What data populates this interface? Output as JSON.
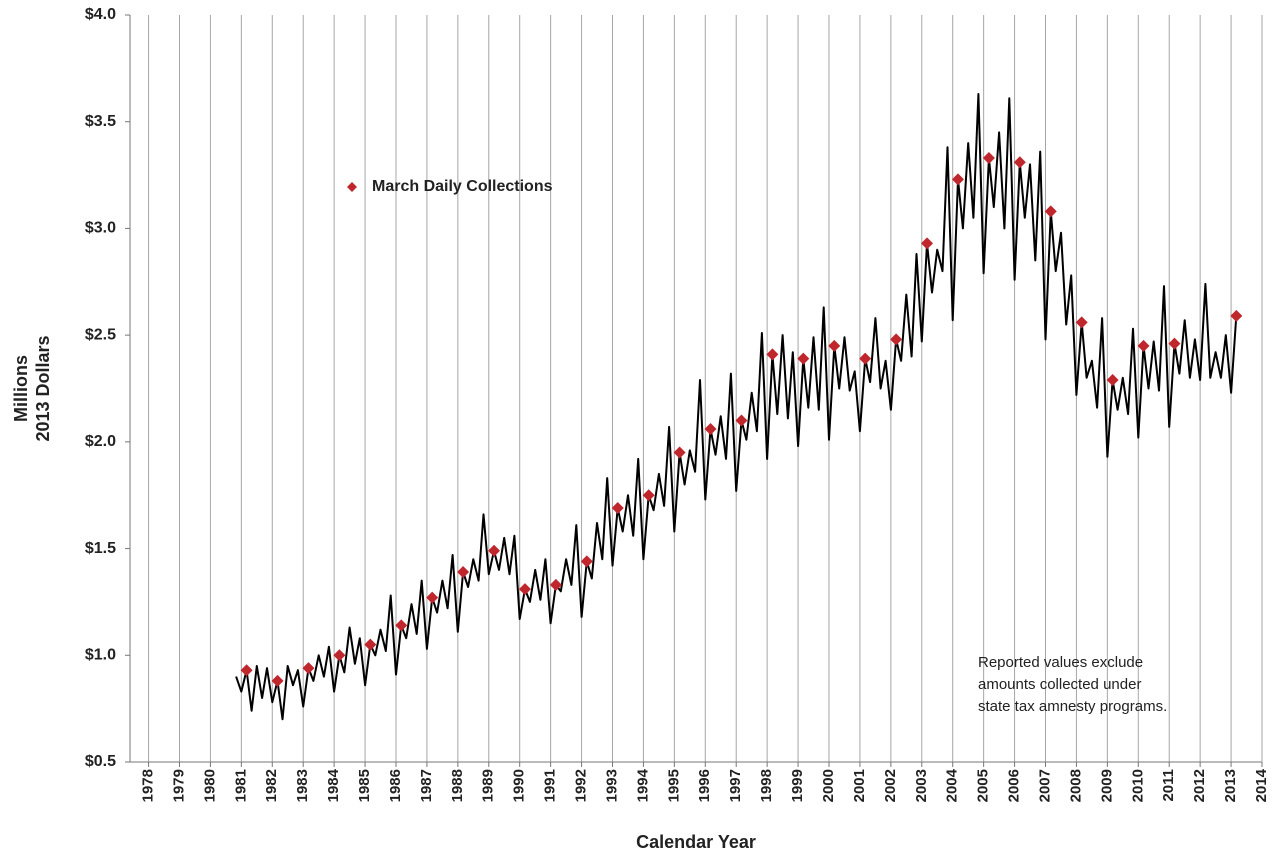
{
  "chart_data": {
    "type": "line",
    "y_label": [
      "Millions",
      "2013 Dollars"
    ],
    "x_label": "Calendar Year",
    "xlim": [
      1977.4,
      2014.0
    ],
    "xticks": [
      1978,
      1979,
      1980,
      1981,
      1982,
      1983,
      1984,
      1985,
      1986,
      1987,
      1988,
      1989,
      1990,
      1991,
      1992,
      1993,
      1994,
      1995,
      1996,
      1997,
      1998,
      1999,
      2000,
      2001,
      2002,
      2003,
      2004,
      2005,
      2006,
      2007,
      2008,
      2009,
      2010,
      2011,
      2012,
      2013,
      2014
    ],
    "ylim": [
      0.5,
      4.0
    ],
    "yticks": [
      {
        "value": 0.5,
        "label": "$0.5"
      },
      {
        "value": 1.0,
        "label": "$1.0"
      },
      {
        "value": 1.5,
        "label": "$1.5"
      },
      {
        "value": 2.0,
        "label": "$2.0"
      },
      {
        "value": 2.5,
        "label": "$2.5"
      },
      {
        "value": 3.0,
        "label": "$3.0"
      },
      {
        "value": 3.5,
        "label": "$3.5"
      },
      {
        "value": 4.0,
        "label": "$4.0"
      }
    ],
    "grid": "x",
    "legend": "upper-left",
    "annotation": [
      "Reported values exclude",
      "amounts collected under",
      "state tax amnesty programs."
    ],
    "series": [
      {
        "style": "line",
        "color": "#000000",
        "x": [
          1980.83,
          1981,
          1981.17,
          1981.33,
          1981.5,
          1981.67,
          1981.83,
          1982,
          1982.17,
          1982.33,
          1982.5,
          1982.67,
          1982.83,
          1983,
          1983.17,
          1983.33,
          1983.5,
          1983.67,
          1983.83,
          1984,
          1984.17,
          1984.33,
          1984.5,
          1984.67,
          1984.83,
          1985,
          1985.17,
          1985.33,
          1985.5,
          1985.67,
          1985.83,
          1986,
          1986.17,
          1986.33,
          1986.5,
          1986.67,
          1986.83,
          1987,
          1987.17,
          1987.33,
          1987.5,
          1987.67,
          1987.83,
          1988,
          1988.17,
          1988.33,
          1988.5,
          1988.67,
          1988.83,
          1989,
          1989.17,
          1989.33,
          1989.5,
          1989.67,
          1989.83,
          1990,
          1990.17,
          1990.33,
          1990.5,
          1990.67,
          1990.83,
          1991,
          1991.17,
          1991.33,
          1991.5,
          1991.67,
          1991.83,
          1992,
          1992.17,
          1992.33,
          1992.5,
          1992.67,
          1992.83,
          1993,
          1993.17,
          1993.33,
          1993.5,
          1993.67,
          1993.83,
          1994,
          1994.17,
          1994.33,
          1994.5,
          1994.67,
          1994.83,
          1995,
          1995.17,
          1995.33,
          1995.5,
          1995.67,
          1995.83,
          1996,
          1996.17,
          1996.33,
          1996.5,
          1996.67,
          1996.83,
          1997,
          1997.17,
          1997.33,
          1997.5,
          1997.67,
          1997.83,
          1998,
          1998.17,
          1998.33,
          1998.5,
          1998.67,
          1998.83,
          1999,
          1999.17,
          1999.33,
          1999.5,
          1999.67,
          1999.83,
          2000,
          2000.17,
          2000.33,
          2000.5,
          2000.67,
          2000.83,
          2001,
          2001.17,
          2001.33,
          2001.5,
          2001.67,
          2001.83,
          2002,
          2002.17,
          2002.33,
          2002.5,
          2002.67,
          2002.83,
          2003,
          2003.17,
          2003.33,
          2003.5,
          2003.67,
          2003.83,
          2004,
          2004.17,
          2004.33,
          2004.5,
          2004.67,
          2004.83,
          2005,
          2005.17,
          2005.33,
          2005.5,
          2005.67,
          2005.83,
          2006,
          2006.17,
          2006.33,
          2006.5,
          2006.67,
          2006.83,
          2007,
          2007.17,
          2007.33,
          2007.5,
          2007.67,
          2007.83,
          2008,
          2008.17,
          2008.33,
          2008.5,
          2008.67,
          2008.83,
          2009,
          2009.17,
          2009.33,
          2009.5,
          2009.67,
          2009.83,
          2010,
          2010.17,
          2010.33,
          2010.5,
          2010.67,
          2010.83,
          2011,
          2011.17,
          2011.33,
          2011.5,
          2011.67,
          2011.83,
          2012,
          2012.17,
          2012.33,
          2012.5,
          2012.67,
          2012.83,
          2013,
          2013.17
        ],
        "values": [
          0.9,
          0.83,
          0.93,
          0.74,
          0.95,
          0.8,
          0.94,
          0.78,
          0.88,
          0.7,
          0.95,
          0.86,
          0.93,
          0.76,
          0.94,
          0.88,
          1.0,
          0.9,
          1.04,
          0.83,
          1.0,
          0.92,
          1.13,
          0.96,
          1.08,
          0.86,
          1.05,
          1.0,
          1.12,
          1.02,
          1.28,
          0.91,
          1.14,
          1.08,
          1.24,
          1.1,
          1.35,
          1.03,
          1.27,
          1.2,
          1.35,
          1.22,
          1.47,
          1.11,
          1.39,
          1.32,
          1.45,
          1.35,
          1.66,
          1.38,
          1.49,
          1.4,
          1.55,
          1.38,
          1.56,
          1.17,
          1.31,
          1.25,
          1.4,
          1.26,
          1.45,
          1.15,
          1.33,
          1.3,
          1.45,
          1.33,
          1.61,
          1.18,
          1.44,
          1.36,
          1.62,
          1.45,
          1.83,
          1.42,
          1.69,
          1.58,
          1.75,
          1.56,
          1.92,
          1.45,
          1.75,
          1.68,
          1.85,
          1.7,
          2.07,
          1.58,
          1.95,
          1.8,
          1.96,
          1.86,
          2.29,
          1.73,
          2.06,
          1.94,
          2.12,
          1.92,
          2.32,
          1.77,
          2.1,
          2.01,
          2.23,
          2.05,
          2.51,
          1.92,
          2.41,
          2.13,
          2.5,
          2.11,
          2.42,
          1.98,
          2.39,
          2.16,
          2.49,
          2.15,
          2.63,
          2.01,
          2.45,
          2.25,
          2.49,
          2.24,
          2.33,
          2.05,
          2.39,
          2.28,
          2.58,
          2.25,
          2.38,
          2.15,
          2.48,
          2.38,
          2.69,
          2.4,
          2.88,
          2.47,
          2.93,
          2.7,
          2.9,
          2.8,
          3.38,
          2.57,
          3.23,
          3.0,
          3.4,
          3.05,
          3.63,
          2.79,
          3.33,
          3.1,
          3.45,
          3.0,
          3.61,
          2.76,
          3.31,
          3.05,
          3.3,
          2.85,
          3.36,
          2.48,
          3.08,
          2.8,
          2.98,
          2.55,
          2.78,
          2.22,
          2.56,
          2.3,
          2.38,
          2.16,
          2.58,
          1.93,
          2.29,
          2.15,
          2.3,
          2.13,
          2.53,
          2.02,
          2.45,
          2.25,
          2.47,
          2.24,
          2.73,
          2.07,
          2.46,
          2.32,
          2.57,
          2.3,
          2.48,
          2.29,
          2.74,
          2.3,
          2.42,
          2.3,
          2.5,
          2.23,
          2.59
        ]
      },
      {
        "style": "marker",
        "name": "March Daily Collections",
        "color": "#c0272d",
        "x": [
          1981.17,
          1982.17,
          1983.17,
          1984.17,
          1985.17,
          1986.17,
          1987.17,
          1988.17,
          1989.17,
          1990.17,
          1991.17,
          1992.17,
          1993.17,
          1994.17,
          1995.17,
          1996.17,
          1997.17,
          1998.17,
          1999.17,
          2000.17,
          2001.17,
          2002.17,
          2003.17,
          2004.17,
          2005.17,
          2006.17,
          2007.17,
          2008.17,
          2009.17,
          2010.17,
          2011.17,
          2013.17
        ],
        "values": [
          0.93,
          0.88,
          0.94,
          1.0,
          1.05,
          1.14,
          1.27,
          1.39,
          1.49,
          1.31,
          1.33,
          1.44,
          1.69,
          1.75,
          1.95,
          2.06,
          2.1,
          2.41,
          2.39,
          2.45,
          2.39,
          2.48,
          2.93,
          3.23,
          3.33,
          3.31,
          3.08,
          2.56,
          2.29,
          2.45,
          2.46,
          2.59
        ]
      }
    ]
  }
}
